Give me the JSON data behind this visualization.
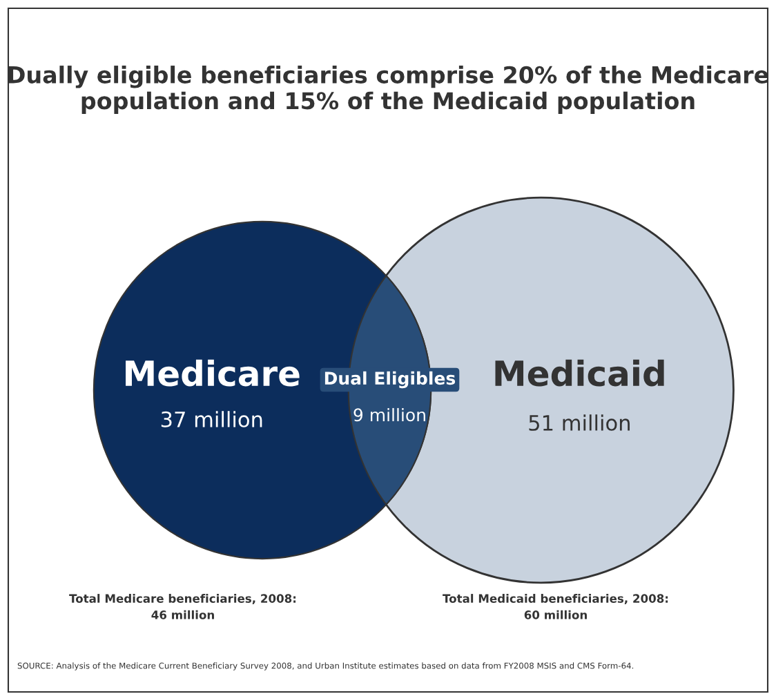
{
  "chart_data": {
    "type": "other",
    "title": "Dually eligible beneficiaries comprise 20% of the Medicare population and 15% of the Medicaid population",
    "categories": [
      "Medicare",
      "Dual Eligibles",
      "Medicaid"
    ],
    "values": [
      37,
      9,
      51
    ],
    "value_labels": [
      "37 million",
      "9 million",
      "51 million"
    ],
    "colors": [
      "#0c2d5c",
      "#284d78",
      "#c8d2de"
    ],
    "annotations": [
      "Total Medicare beneficiaries, 2008:\n46 million",
      "Total Medicaid beneficiaries, 2008:\n60 million",
      "SOURCE: Analysis of the Medicare Current Beneficiary Survey 2008, and Urban Institute estimates based on data from FY2008 MSIS and CMS Form-64."
    ]
  }
}
